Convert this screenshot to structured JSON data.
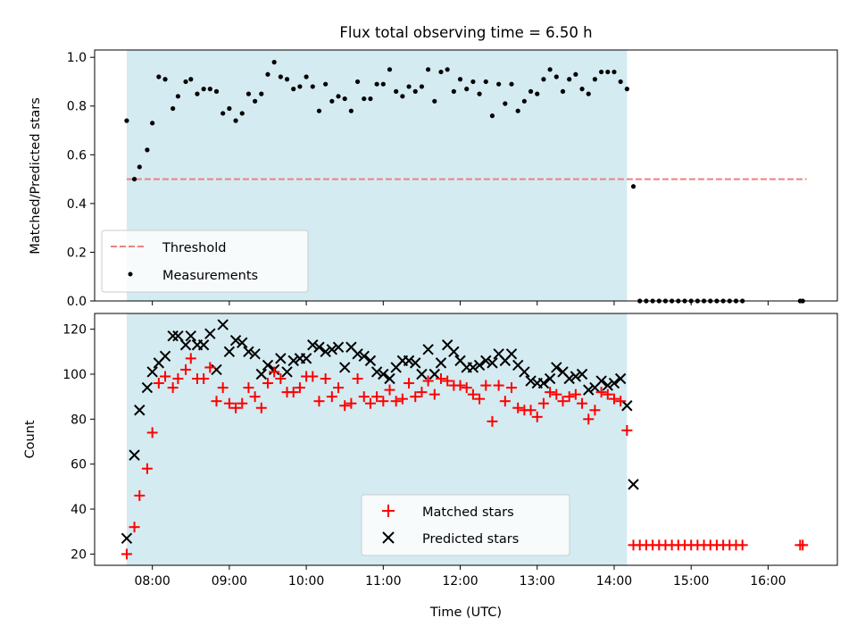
{
  "figure": {
    "title": "Flux total observing time = 6.50 h"
  },
  "colors": {
    "shade": "#d4ebf1",
    "threshold": "#f08080",
    "matched": "#ff0000",
    "predicted": "#000000",
    "point": "#000000"
  },
  "chart_data": [
    {
      "type": "scatter",
      "ylabel": "Matched/Predicted stars",
      "xlim_hours": [
        7.25,
        16.9
      ],
      "ylim": [
        0,
        1.03
      ],
      "y_ticks": [
        "0.0",
        "0.2",
        "0.4",
        "0.6",
        "0.8",
        "1.0"
      ],
      "y_tick_values": [
        0,
        0.2,
        0.4,
        0.6,
        0.8,
        1.0
      ],
      "shaded_span": [
        "07:40",
        "14:10"
      ],
      "legend_position": "lower-left",
      "threshold": {
        "name": "Threshold",
        "y": 0.5,
        "x_range": [
          "07:40",
          "16:30"
        ]
      },
      "measurements": {
        "name": "Measurements",
        "x": [
          "07:40",
          "07:46",
          "07:50",
          "07:56",
          "08:00",
          "08:05",
          "08:10",
          "08:16",
          "08:20",
          "08:26",
          "08:30",
          "08:35",
          "08:40",
          "08:45",
          "08:50",
          "08:55",
          "09:00",
          "09:05",
          "09:10",
          "09:15",
          "09:20",
          "09:25",
          "09:30",
          "09:35",
          "09:40",
          "09:45",
          "09:50",
          "09:55",
          "10:00",
          "10:05",
          "10:10",
          "10:15",
          "10:20",
          "10:25",
          "10:30",
          "10:35",
          "10:40",
          "10:45",
          "10:50",
          "10:55",
          "11:00",
          "11:05",
          "11:10",
          "11:15",
          "11:20",
          "11:25",
          "11:30",
          "11:35",
          "11:40",
          "11:45",
          "11:50",
          "11:55",
          "12:00",
          "12:05",
          "12:10",
          "12:15",
          "12:20",
          "12:25",
          "12:30",
          "12:35",
          "12:40",
          "12:45",
          "12:50",
          "12:55",
          "13:00",
          "13:05",
          "13:10",
          "13:15",
          "13:20",
          "13:25",
          "13:30",
          "13:35",
          "13:40",
          "13:45",
          "13:50",
          "13:55",
          "14:00",
          "14:05",
          "14:10",
          "14:15",
          "14:20",
          "14:25",
          "14:30",
          "14:35",
          "14:40",
          "14:45",
          "14:50",
          "14:55",
          "15:00",
          "15:05",
          "15:10",
          "15:15",
          "15:20",
          "15:25",
          "15:30",
          "15:35",
          "15:40",
          "16:25",
          "16:27"
        ],
        "y": [
          0.74,
          0.5,
          0.55,
          0.62,
          0.73,
          0.92,
          0.91,
          0.79,
          0.84,
          0.9,
          0.91,
          0.85,
          0.87,
          0.87,
          0.86,
          0.77,
          0.79,
          0.74,
          0.77,
          0.85,
          0.82,
          0.85,
          0.93,
          0.98,
          0.92,
          0.91,
          0.87,
          0.88,
          0.92,
          0.88,
          0.78,
          0.89,
          0.82,
          0.84,
          0.83,
          0.78,
          0.9,
          0.83,
          0.83,
          0.89,
          0.89,
          0.95,
          0.86,
          0.84,
          0.88,
          0.86,
          0.88,
          0.95,
          0.82,
          0.94,
          0.95,
          0.86,
          0.91,
          0.87,
          0.9,
          0.85,
          0.9,
          0.76,
          0.89,
          0.81,
          0.89,
          0.78,
          0.82,
          0.86,
          0.85,
          0.91,
          0.95,
          0.92,
          0.86,
          0.91,
          0.93,
          0.87,
          0.85,
          0.91,
          0.94,
          0.94,
          0.94,
          0.9,
          0.87,
          0.47,
          0,
          0,
          0,
          0,
          0,
          0,
          0,
          0,
          0,
          0,
          0,
          0,
          0,
          0,
          0,
          0,
          0,
          0,
          0
        ]
      }
    },
    {
      "type": "scatter",
      "xlabel": "Time (UTC)",
      "ylabel": "Count",
      "xlim_hours": [
        7.25,
        16.9
      ],
      "ylim": [
        15,
        127
      ],
      "y_ticks": [
        "20",
        "40",
        "60",
        "80",
        "100",
        "120"
      ],
      "y_tick_values": [
        20,
        40,
        60,
        80,
        100,
        120
      ],
      "x_ticks": [
        "08:00",
        "09:00",
        "10:00",
        "11:00",
        "12:00",
        "13:00",
        "14:00",
        "15:00",
        "16:00"
      ],
      "x_tick_values": [
        "08:00",
        "09:00",
        "10:00",
        "11:00",
        "12:00",
        "13:00",
        "14:00",
        "15:00",
        "16:00"
      ],
      "shaded_span": [
        "07:40",
        "14:10"
      ],
      "legend_position": "lower-center",
      "series": [
        {
          "name": "Matched stars",
          "marker": "plus",
          "x": [
            "07:40",
            "07:46",
            "07:50",
            "07:56",
            "08:00",
            "08:05",
            "08:10",
            "08:16",
            "08:20",
            "08:26",
            "08:30",
            "08:35",
            "08:40",
            "08:45",
            "08:50",
            "08:55",
            "09:00",
            "09:05",
            "09:10",
            "09:15",
            "09:20",
            "09:25",
            "09:30",
            "09:35",
            "09:40",
            "09:45",
            "09:50",
            "09:55",
            "10:00",
            "10:05",
            "10:10",
            "10:15",
            "10:20",
            "10:25",
            "10:30",
            "10:35",
            "10:40",
            "10:45",
            "10:50",
            "10:55",
            "11:00",
            "11:05",
            "11:10",
            "11:15",
            "11:20",
            "11:25",
            "11:30",
            "11:35",
            "11:40",
            "11:45",
            "11:50",
            "11:55",
            "12:00",
            "12:05",
            "12:10",
            "12:15",
            "12:20",
            "12:25",
            "12:30",
            "12:35",
            "12:40",
            "12:45",
            "12:50",
            "12:55",
            "13:00",
            "13:05",
            "13:10",
            "13:15",
            "13:20",
            "13:25",
            "13:30",
            "13:35",
            "13:40",
            "13:45",
            "13:50",
            "13:55",
            "14:00",
            "14:05",
            "14:10",
            "14:15",
            "14:20",
            "14:25",
            "14:30",
            "14:35",
            "14:40",
            "14:45",
            "14:50",
            "14:55",
            "15:00",
            "15:05",
            "15:10",
            "15:15",
            "15:20",
            "15:25",
            "15:30",
            "15:35",
            "15:40",
            "16:25",
            "16:27"
          ],
          "y": [
            20,
            32,
            46,
            58,
            74,
            96,
            99,
            94,
            98,
            102,
            107,
            98,
            98,
            103,
            88,
            94,
            87,
            85,
            87,
            94,
            90,
            85,
            96,
            101,
            98,
            92,
            92,
            94,
            99,
            99,
            88,
            98,
            90,
            94,
            86,
            87,
            98,
            90,
            87,
            90,
            88,
            93,
            88,
            89,
            96,
            90,
            92,
            97,
            91,
            98,
            97,
            95,
            95,
            94,
            91,
            89,
            95,
            79,
            95,
            88,
            94,
            85,
            84,
            84,
            81,
            87,
            92,
            91,
            88,
            90,
            91,
            87,
            80,
            84,
            92,
            91,
            89,
            88,
            75,
            24,
            24,
            24,
            24,
            24,
            24,
            24,
            24,
            24,
            24,
            24,
            24,
            24,
            24,
            24,
            24,
            24,
            24,
            24,
            24
          ]
        },
        {
          "name": "Predicted stars",
          "marker": "x",
          "x": [
            "07:40",
            "07:46",
            "07:50",
            "07:56",
            "08:00",
            "08:05",
            "08:10",
            "08:16",
            "08:20",
            "08:26",
            "08:30",
            "08:35",
            "08:40",
            "08:45",
            "08:50",
            "08:55",
            "09:00",
            "09:05",
            "09:10",
            "09:15",
            "09:20",
            "09:25",
            "09:30",
            "09:35",
            "09:40",
            "09:45",
            "09:50",
            "09:55",
            "10:00",
            "10:05",
            "10:10",
            "10:15",
            "10:20",
            "10:25",
            "10:30",
            "10:35",
            "10:40",
            "10:45",
            "10:50",
            "10:55",
            "11:00",
            "11:05",
            "11:10",
            "11:15",
            "11:20",
            "11:25",
            "11:30",
            "11:35",
            "11:40",
            "11:45",
            "11:50",
            "11:55",
            "12:00",
            "12:05",
            "12:10",
            "12:15",
            "12:20",
            "12:25",
            "12:30",
            "12:35",
            "12:40",
            "12:45",
            "12:50",
            "12:55",
            "13:00",
            "13:05",
            "13:10",
            "13:15",
            "13:20",
            "13:25",
            "13:30",
            "13:35",
            "13:40",
            "13:45",
            "13:50",
            "13:55",
            "14:00",
            "14:05",
            "14:10",
            "14:15"
          ],
          "y": [
            27,
            64,
            84,
            94,
            101,
            105,
            108,
            117,
            117,
            113,
            117,
            113,
            113,
            118,
            102,
            122,
            110,
            115,
            114,
            110,
            109,
            100,
            104,
            102,
            107,
            101,
            106,
            107,
            107,
            113,
            112,
            110,
            111,
            112,
            103,
            112,
            109,
            108,
            106,
            101,
            100,
            98,
            103,
            106,
            106,
            105,
            100,
            111,
            100,
            105,
            113,
            110,
            106,
            103,
            103,
            104,
            106,
            105,
            109,
            106,
            109,
            104,
            101,
            97,
            96,
            96,
            98,
            103,
            101,
            98,
            99,
            100,
            93,
            94,
            97,
            95,
            96,
            98,
            86,
            51
          ]
        }
      ]
    }
  ]
}
